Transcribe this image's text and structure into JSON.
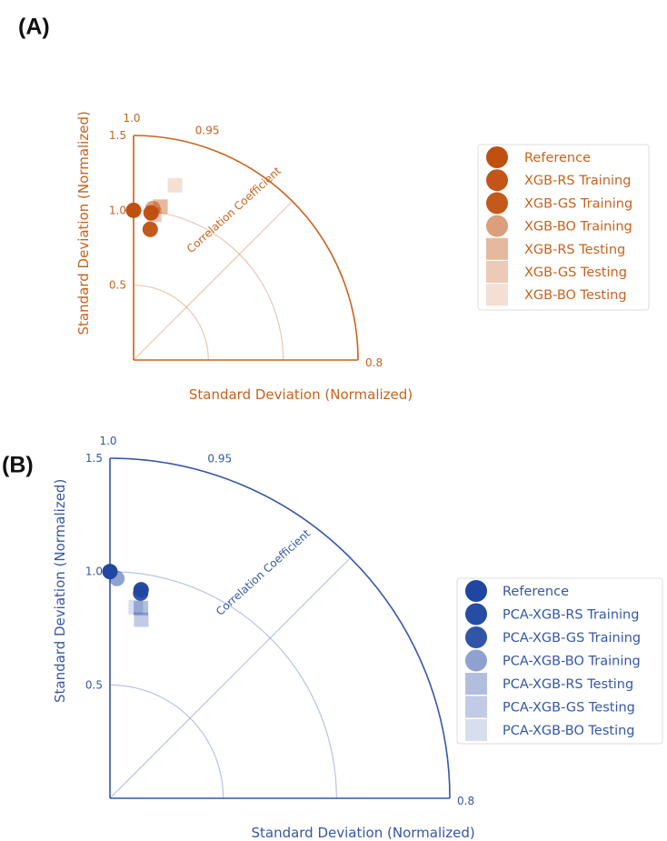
{
  "chart_data": [
    {
      "panel": "(A)",
      "type": "scatter",
      "subtype": "taylor-diagram",
      "title": "",
      "xlabel": "Standard Deviation (Normalized)",
      "ylabel": "Standard Deviation (Normalized)",
      "arc_label": "Correlation Coefficient",
      "ylim": [
        0,
        1.5
      ],
      "y_ticks": [
        {
          "value": 0.5,
          "label": "0.5"
        },
        {
          "value": 1.0,
          "label": "1.0"
        },
        {
          "value": 1.5,
          "label": "1.5"
        }
      ],
      "corr_ticks": [
        {
          "value": 1.0,
          "label": "1.0"
        },
        {
          "value": 0.95,
          "label": "0.95"
        },
        {
          "value": 0.8,
          "label": "0.8"
        }
      ],
      "reference_arcs": [
        0.5,
        1.0
      ],
      "corr_line": 0.707,
      "grid": false,
      "legend_position": "right",
      "axis_color": "#c8621e",
      "series": [
        {
          "name": "Reference",
          "marker": "circle",
          "color": "#c0500f",
          "opacity": 1.0,
          "x": [
            1.0
          ],
          "y": [
            1.0
          ]
        },
        {
          "name": "XGB-RS Training",
          "marker": "circle",
          "color": "#c0500f",
          "opacity": 0.97,
          "x": [
            0.993
          ],
          "y": [
            0.99
          ]
        },
        {
          "name": "XGB-GS Training",
          "marker": "circle",
          "color": "#c0500f",
          "opacity": 0.95,
          "x": [
            0.992
          ],
          "y": [
            0.88
          ]
        },
        {
          "name": "XGB-BO Training",
          "marker": "circle",
          "color": "#c0500f",
          "opacity": 0.55,
          "x": [
            0.992
          ],
          "y": [
            1.02
          ]
        },
        {
          "name": "XGB-RS Testing",
          "marker": "square",
          "color": "#c0500f",
          "opacity": 0.4,
          "x": [
            0.985
          ],
          "y": [
            1.04
          ]
        },
        {
          "name": "XGB-GS Testing",
          "marker": "square",
          "color": "#c0500f",
          "opacity": 0.3,
          "x": [
            0.99
          ],
          "y": [
            0.98
          ]
        },
        {
          "name": "XGB-BO Testing",
          "marker": "square",
          "color": "#c0500f",
          "opacity": 0.18,
          "x": [
            0.973
          ],
          "y": [
            1.2
          ]
        }
      ]
    },
    {
      "panel": "(B)",
      "type": "scatter",
      "subtype": "taylor-diagram",
      "title": "",
      "xlabel": "Standard Deviation (Normalized)",
      "ylabel": "Standard Deviation (Normalized)",
      "arc_label": "Correlation Coefficient",
      "ylim": [
        0,
        1.5
      ],
      "y_ticks": [
        {
          "value": 0.5,
          "label": "0.5"
        },
        {
          "value": 1.0,
          "label": "1.0"
        },
        {
          "value": 1.5,
          "label": "1.5"
        }
      ],
      "corr_ticks": [
        {
          "value": 1.0,
          "label": "1.0"
        },
        {
          "value": 0.95,
          "label": "0.95"
        },
        {
          "value": 0.8,
          "label": "0.8"
        }
      ],
      "reference_arcs": [
        0.5,
        1.0
      ],
      "corr_line": 0.707,
      "grid": false,
      "legend_position": "right",
      "axis_color": "#3557a6",
      "series": [
        {
          "name": "Reference",
          "marker": "circle",
          "color": "#1f46a0",
          "opacity": 1.0,
          "x": [
            1.0
          ],
          "y": [
            1.0
          ]
        },
        {
          "name": "PCA-XGB-RS Training",
          "marker": "circle",
          "color": "#1f46a0",
          "opacity": 0.97,
          "x": [
            0.989
          ],
          "y": [
            0.93
          ]
        },
        {
          "name": "PCA-XGB-GS Training",
          "marker": "circle",
          "color": "#1f46a0",
          "opacity": 0.92,
          "x": [
            0.989
          ],
          "y": [
            0.915
          ]
        },
        {
          "name": "PCA-XGB-BO Training",
          "marker": "circle",
          "color": "#1f46a0",
          "opacity": 0.5,
          "x": [
            0.9995
          ],
          "y": [
            0.97
          ]
        },
        {
          "name": "PCA-XGB-RS Testing",
          "marker": "square",
          "color": "#1f46a0",
          "opacity": 0.35,
          "x": [
            0.987
          ],
          "y": [
            0.85
          ]
        },
        {
          "name": "PCA-XGB-GS Testing",
          "marker": "square",
          "color": "#1f46a0",
          "opacity": 0.28,
          "x": [
            0.985
          ],
          "y": [
            0.8
          ]
        },
        {
          "name": "PCA-XGB-BO Testing",
          "marker": "square",
          "color": "#1f46a0",
          "opacity": 0.18,
          "x": [
            0.991
          ],
          "y": [
            0.85
          ]
        }
      ]
    }
  ]
}
